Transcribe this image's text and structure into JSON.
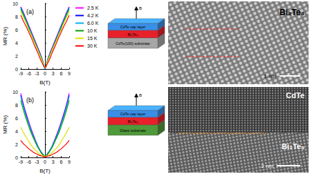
{
  "chart_data": [
    {
      "type": "line",
      "panel": "(a)",
      "x_label": "B(T)",
      "y_label": "MR (%)",
      "x": [
        -9,
        -8,
        -7,
        -6,
        -5,
        -4,
        -3,
        -2,
        -1,
        0,
        1,
        2,
        3,
        4,
        5,
        6,
        7,
        8,
        9
      ],
      "xlim": [
        -9,
        9
      ],
      "xticks": [
        -9,
        -6,
        -3,
        0,
        3,
        6,
        9
      ],
      "ylim": [
        0,
        10
      ],
      "yticks": [
        0,
        2,
        4,
        6,
        8,
        10
      ],
      "grid": false,
      "legend": "upper right",
      "series": [
        {
          "name": "2.5 K",
          "color": "#ff00ff",
          "values": [
            9.5,
            8.6,
            7.6,
            6.6,
            5.6,
            4.6,
            3.6,
            2.6,
            1.5,
            0.1,
            1.5,
            2.6,
            3.6,
            4.6,
            5.6,
            6.6,
            7.6,
            8.6,
            9.5
          ]
        },
        {
          "name": "4.2 K",
          "color": "#0000ff",
          "values": [
            9.4,
            8.5,
            7.5,
            6.5,
            5.5,
            4.5,
            3.5,
            2.5,
            1.4,
            0.1,
            1.4,
            2.5,
            3.5,
            4.5,
            5.5,
            6.5,
            7.5,
            8.5,
            9.4
          ]
        },
        {
          "name": "6.0 K",
          "color": "#00b0f0",
          "values": [
            9.3,
            8.4,
            7.4,
            6.4,
            5.4,
            4.4,
            3.4,
            2.4,
            1.4,
            0.1,
            1.4,
            2.4,
            3.4,
            4.4,
            5.4,
            6.4,
            7.4,
            8.4,
            9.3
          ]
        },
        {
          "name": "10 K",
          "color": "#00a000",
          "values": [
            9.1,
            8.2,
            7.2,
            6.2,
            5.2,
            4.3,
            3.3,
            2.3,
            1.3,
            0.2,
            1.3,
            2.3,
            3.3,
            4.3,
            5.2,
            6.2,
            7.2,
            8.2,
            9.1
          ]
        },
        {
          "name": "15 K",
          "color": "#e0e000",
          "values": [
            8.8,
            7.9,
            7.0,
            6.0,
            5.1,
            4.1,
            3.2,
            2.2,
            1.2,
            0.2,
            1.2,
            2.2,
            3.2,
            4.1,
            5.1,
            6.0,
            7.0,
            7.9,
            8.8
          ]
        },
        {
          "name": "30 K",
          "color": "#ff0000",
          "values": [
            8.2,
            7.3,
            6.5,
            5.6,
            4.7,
            3.7,
            2.8,
            1.8,
            0.9,
            0.3,
            0.9,
            1.8,
            2.8,
            3.7,
            4.7,
            5.6,
            6.5,
            7.3,
            8.2
          ]
        }
      ]
    },
    {
      "type": "line",
      "panel": "(b)",
      "x_label": "B(T)",
      "y_label": "MR (%)",
      "x": [
        -9,
        -8,
        -7,
        -6,
        -5,
        -4,
        -3,
        -2,
        -1,
        0,
        1,
        2,
        3,
        4,
        5,
        6,
        7,
        8,
        9
      ],
      "xlim": [
        -9,
        9
      ],
      "xticks": [
        -9,
        -6,
        -3,
        0,
        3,
        6,
        9
      ],
      "ylim": [
        0,
        10
      ],
      "yticks": [
        0,
        2,
        4,
        6,
        8,
        10
      ],
      "grid": false,
      "series": [
        {
          "name": "2.5 K",
          "color": "#ff00ff",
          "values": [
            9.8,
            8.1,
            6.7,
            5.4,
            4.2,
            3.1,
            2.1,
            1.2,
            0.6,
            0.2,
            0.6,
            1.2,
            2.1,
            3.1,
            4.2,
            5.4,
            6.7,
            8.1,
            9.8
          ]
        },
        {
          "name": "4.2 K",
          "color": "#0000ff",
          "values": [
            9.5,
            7.9,
            6.5,
            5.2,
            4.0,
            3.0,
            2.0,
            1.2,
            0.6,
            0.2,
            0.6,
            1.2,
            2.0,
            3.0,
            4.0,
            5.2,
            6.5,
            7.9,
            9.5
          ]
        },
        {
          "name": "6.0 K",
          "color": "#00b0f0",
          "values": [
            9.3,
            7.7,
            6.3,
            5.1,
            3.9,
            2.9,
            2.0,
            1.2,
            0.6,
            0.2,
            0.6,
            1.2,
            2.0,
            2.9,
            3.9,
            5.1,
            6.3,
            7.7,
            9.3
          ]
        },
        {
          "name": "10 K",
          "color": "#00a000",
          "values": [
            8.7,
            7.2,
            5.9,
            4.7,
            3.6,
            2.7,
            1.8,
            1.1,
            0.5,
            0.2,
            0.5,
            1.1,
            1.8,
            2.7,
            3.6,
            4.7,
            5.9,
            7.2,
            8.7
          ]
        },
        {
          "name": "15 K",
          "color": "#e0e000",
          "values": [
            4.6,
            3.8,
            3.1,
            2.4,
            1.8,
            1.3,
            0.9,
            0.5,
            0.3,
            0.2,
            0.3,
            0.5,
            0.9,
            1.3,
            1.8,
            2.4,
            3.1,
            3.8,
            4.6
          ]
        },
        {
          "name": "30 K",
          "color": "#ff0000",
          "values": [
            2.6,
            2.1,
            1.7,
            1.3,
            1.0,
            0.7,
            0.5,
            0.3,
            0.2,
            0.1,
            0.2,
            0.3,
            0.5,
            0.7,
            1.0,
            1.3,
            1.7,
            2.1,
            2.6
          ]
        }
      ]
    }
  ],
  "diagrams": [
    {
      "field_label": "B",
      "layers": [
        {
          "label": "CdTe cap layer",
          "color": "#3a8ee6"
        },
        {
          "label": "Bi₂Te₃",
          "color": "#e8202a"
        },
        {
          "label": "CdTe(100) substrate",
          "color": "#a6a6a6"
        }
      ]
    },
    {
      "field_label": "B",
      "layers": [
        {
          "label": "CdTe cap layer",
          "color": "#3a8ee6"
        },
        {
          "label": "Bi₂Te₃",
          "color": "#e8202a"
        },
        {
          "label": "Glass substrate",
          "color": "#4f9a3a"
        }
      ]
    }
  ],
  "images": [
    {
      "labels": [
        "Bi₂Te₃"
      ],
      "scale_bar": "1 nm"
    },
    {
      "labels": [
        "CdTe",
        "Bi₂Te₃"
      ],
      "scale_bar": "2 nm"
    }
  ]
}
